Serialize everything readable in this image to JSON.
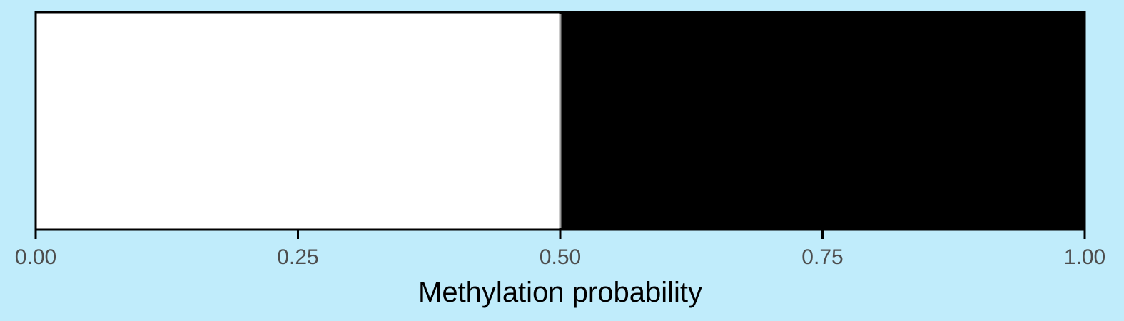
{
  "chart_data": {
    "type": "bar",
    "orientation": "horizontal-stacked",
    "xlabel": "Methylation probability",
    "ylabel": "",
    "title": "",
    "xlim": [
      0,
      1
    ],
    "x_ticks": [
      "0.00",
      "0.25",
      "0.50",
      "0.75",
      "1.00"
    ],
    "segments": [
      {
        "start": 0.0,
        "end": 0.5,
        "fill": "#FFFFFF"
      },
      {
        "start": 0.5,
        "end": 1.0,
        "fill": "#000000"
      }
    ],
    "grid": false,
    "legend": "none"
  },
  "colors": {
    "background": "#C0ECFB",
    "tick_text": "#4D4D4D",
    "axis": "#000000",
    "divider": "#999999"
  }
}
